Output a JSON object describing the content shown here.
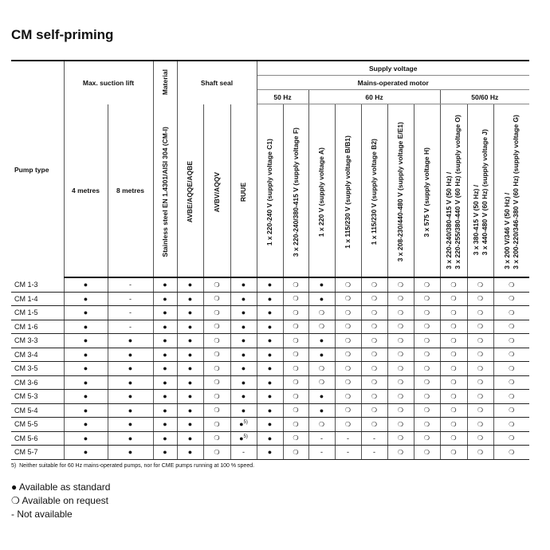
{
  "title": "CM self-priming",
  "headers": {
    "pump_type": "Pump type",
    "max_suction_lift": "Max. suction lift",
    "lift_4": "4 metres",
    "lift_8": "8 metres",
    "material": "Material",
    "material_col": "Stainless steel EN 1.4301/AISI 304 (CM-I)",
    "shaft_seal": "Shaft seal",
    "seals": [
      "AVBE/AQQE/AQBE",
      "AVBV/AQQV",
      "RUUE"
    ],
    "supply_voltage": "Supply voltage",
    "mains_motor": "Mains-operated motor",
    "hz50": "50 Hz",
    "hz60": "60 Hz",
    "hz5060": "50/60 Hz",
    "v50": [
      "1 x 220-240 V (supply voltage C1)",
      "3 x 220-240/380-415 V (supply voltage F)"
    ],
    "v60": [
      "1 x 220 V (supply voltage A)",
      "1 x 115/230 V (supply voltage B/B1)",
      "1 x 115/230 V (supply voltage B2)",
      "3 x 208-230/440-480 V (supply voltage E/E1)",
      "3 x 575 V (supply voltage H)"
    ],
    "v5060": [
      [
        "3 x 220-240/380-415 V (50 Hz) /",
        "3 x 220-255/380-440 V (60 Hz) (supply voltage O)"
      ],
      [
        "3 x 380-415 V (50 Hz) /",
        "3 x 440-480 V (60 Hz) (supply voltage J)"
      ],
      [
        "3 x 200 V/346 V (50 Hz) /",
        "3 x 200-220/346-380 V (60 Hz) (supply voltage G)"
      ]
    ]
  },
  "symbols": {
    "std": "●",
    "req": "❍",
    "na": "-"
  },
  "rows": [
    {
      "pump": "CM 1-3",
      "cells": [
        "std",
        "na",
        "std",
        "std",
        "req",
        "std",
        "std",
        "req",
        "std",
        "req",
        "req",
        "req",
        "req",
        "req",
        "req",
        "req"
      ]
    },
    {
      "pump": "CM 1-4",
      "cells": [
        "std",
        "na",
        "std",
        "std",
        "req",
        "std",
        "std",
        "req",
        "std",
        "req",
        "req",
        "req",
        "req",
        "req",
        "req",
        "req"
      ]
    },
    {
      "pump": "CM 1-5",
      "cells": [
        "std",
        "na",
        "std",
        "std",
        "req",
        "std",
        "std",
        "req",
        "req",
        "req",
        "req",
        "req",
        "req",
        "req",
        "req",
        "req"
      ]
    },
    {
      "pump": "CM 1-6",
      "cells": [
        "std",
        "na",
        "std",
        "std",
        "req",
        "std",
        "std",
        "req",
        "req",
        "req",
        "req",
        "req",
        "req",
        "req",
        "req",
        "req"
      ]
    },
    {
      "pump": "CM 3-3",
      "cells": [
        "std",
        "std",
        "std",
        "std",
        "req",
        "std",
        "std",
        "req",
        "std",
        "req",
        "req",
        "req",
        "req",
        "req",
        "req",
        "req"
      ]
    },
    {
      "pump": "CM 3-4",
      "cells": [
        "std",
        "std",
        "std",
        "std",
        "req",
        "std",
        "std",
        "req",
        "std",
        "req",
        "req",
        "req",
        "req",
        "req",
        "req",
        "req"
      ]
    },
    {
      "pump": "CM 3-5",
      "cells": [
        "std",
        "std",
        "std",
        "std",
        "req",
        "std",
        "std",
        "req",
        "req",
        "req",
        "req",
        "req",
        "req",
        "req",
        "req",
        "req"
      ]
    },
    {
      "pump": "CM 3-6",
      "cells": [
        "std",
        "std",
        "std",
        "std",
        "req",
        "std",
        "std",
        "req",
        "req",
        "req",
        "req",
        "req",
        "req",
        "req",
        "req",
        "req"
      ]
    },
    {
      "pump": "CM 5-3",
      "cells": [
        "std",
        "std",
        "std",
        "std",
        "req",
        "std",
        "std",
        "req",
        "std",
        "req",
        "req",
        "req",
        "req",
        "req",
        "req",
        "req"
      ]
    },
    {
      "pump": "CM 5-4",
      "cells": [
        "std",
        "std",
        "std",
        "std",
        "req",
        "std",
        "std",
        "req",
        "std",
        "req",
        "req",
        "req",
        "req",
        "req",
        "req",
        "req"
      ]
    },
    {
      "pump": "CM 5-5",
      "cells": [
        "std",
        "std",
        "std",
        "std",
        "req",
        "std5",
        "std",
        "req",
        "req",
        "req",
        "req",
        "req",
        "req",
        "req",
        "req",
        "req"
      ]
    },
    {
      "pump": "CM 5-6",
      "cells": [
        "std",
        "std",
        "std",
        "std",
        "req",
        "std5",
        "std",
        "req",
        "na",
        "na",
        "na",
        "req",
        "req",
        "req",
        "req",
        "req"
      ]
    },
    {
      "pump": "CM 5-7",
      "cells": [
        "std",
        "std",
        "std",
        "std",
        "req",
        "na",
        "std",
        "req",
        "na",
        "na",
        "na",
        "req",
        "req",
        "req",
        "req",
        "req"
      ]
    }
  ],
  "footnote_mark": "5)",
  "footnote": "Neither suitable for 60 Hz mains-operated pumps, nor for CME pumps running at 100 % speed.",
  "legend": [
    {
      "symbol": "●",
      "label": "Available as standard"
    },
    {
      "symbol": "❍",
      "label": "Available on request"
    },
    {
      "symbol": "-",
      "label": "Not available"
    }
  ]
}
